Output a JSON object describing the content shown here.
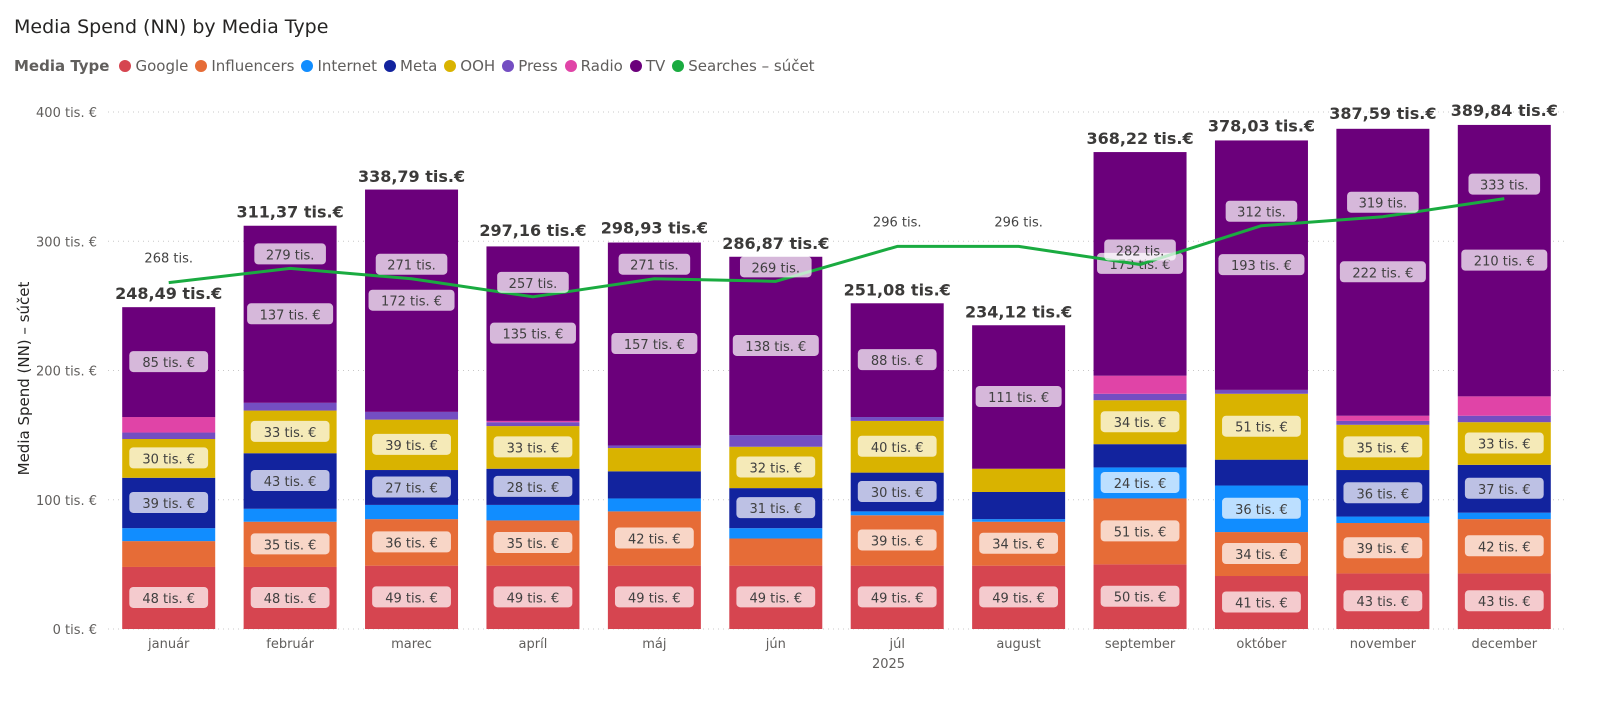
{
  "chart_data": {
    "type": "bar",
    "stacked": true,
    "title": "Media Spend (NN) by Media Type",
    "legend": {
      "title": "Media Type",
      "position": "top-left",
      "items": [
        {
          "name": "Google",
          "color": "#d64550"
        },
        {
          "name": "Influencers",
          "color": "#e66c37"
        },
        {
          "name": "Internet",
          "color": "#118dff"
        },
        {
          "name": "Meta",
          "color": "#12239e"
        },
        {
          "name": "OOH",
          "color": "#d9b300"
        },
        {
          "name": "Press",
          "color": "#744ec2"
        },
        {
          "name": "Radio",
          "color": "#e044a7"
        },
        {
          "name": "TV",
          "color": "#6b007b"
        },
        {
          "name": "Searches – súčet",
          "color": "#1aab40"
        }
      ]
    },
    "xlabel": "2025",
    "ylabel": "Media Spend (NN) – súčet",
    "ylim": [
      0,
      400
    ],
    "yticks": [
      {
        "value": 0,
        "label": "0 tis. €"
      },
      {
        "value": 100,
        "label": "100 tis. €"
      },
      {
        "value": 200,
        "label": "200 tis. €"
      },
      {
        "value": 300,
        "label": "300 tis. €"
      },
      {
        "value": 400,
        "label": "400 tis. €"
      }
    ],
    "grid": "horizontal dotted",
    "categories": [
      "január",
      "február",
      "marec",
      "apríl",
      "máj",
      "jún",
      "júl",
      "august",
      "september",
      "október",
      "november",
      "december"
    ],
    "series": [
      {
        "name": "Google",
        "color": "#d64550",
        "values": [
          48,
          48,
          49,
          49,
          49,
          49,
          49,
          49,
          50,
          41,
          43,
          43
        ],
        "labels": [
          "48 tis. €",
          "48 tis. €",
          "49 tis. €",
          "49 tis. €",
          "49 tis. €",
          "49 tis. €",
          "49 tis. €",
          "49 tis. €",
          "50 tis. €",
          "41 tis. €",
          "43 tis. €",
          "43 tis. €"
        ]
      },
      {
        "name": "Influencers",
        "color": "#e66c37",
        "values": [
          20,
          35,
          36,
          35,
          42,
          21,
          39,
          34,
          51,
          34,
          39,
          42
        ],
        "labels": [
          "",
          "35 tis. €",
          "36 tis. €",
          "35 tis. €",
          "42 tis. €",
          "",
          "39 tis. €",
          "34 tis. €",
          "51 tis. €",
          "34 tis. €",
          "39 tis. €",
          "42 tis. €"
        ]
      },
      {
        "name": "Internet",
        "color": "#118dff",
        "values": [
          10,
          10,
          11,
          12,
          10,
          8,
          3,
          2,
          24,
          36,
          5,
          5
        ],
        "labels": [
          "",
          "",
          "",
          "",
          "",
          "",
          "",
          "",
          "24 tis. €",
          "36 tis. €",
          "",
          ""
        ]
      },
      {
        "name": "Meta",
        "color": "#12239e",
        "values": [
          39,
          43,
          27,
          28,
          21,
          31,
          30,
          21,
          18,
          20,
          36,
          37
        ],
        "labels": [
          "39 tis. €",
          "43 tis. €",
          "27 tis. €",
          "28 tis. €",
          "",
          "31 tis. €",
          "30 tis. €",
          "",
          "",
          "",
          "36 tis. €",
          "37 tis. €"
        ]
      },
      {
        "name": "OOH",
        "color": "#d9b300",
        "values": [
          30,
          33,
          39,
          33,
          18,
          32,
          40,
          18,
          34,
          51,
          35,
          33
        ],
        "labels": [
          "30 tis. €",
          "33 tis. €",
          "39 tis. €",
          "33 tis. €",
          "",
          "32 tis. €",
          "40 tis. €",
          "",
          "34 tis. €",
          "51 tis. €",
          "35 tis. €",
          "33 tis. €"
        ]
      },
      {
        "name": "Press",
        "color": "#744ec2",
        "values": [
          5,
          6,
          6,
          3,
          2,
          9,
          3,
          0,
          5,
          3,
          3,
          5
        ],
        "labels": [
          "",
          "",
          "",
          "",
          "",
          "",
          "",
          "",
          "",
          "",
          "",
          ""
        ]
      },
      {
        "name": "Radio",
        "color": "#e044a7",
        "values": [
          12,
          0,
          0,
          1,
          0,
          0,
          0,
          0,
          14,
          0,
          4,
          15
        ],
        "labels": [
          "",
          "",
          "",
          "",
          "",
          "",
          "",
          "",
          "",
          "",
          "",
          ""
        ]
      },
      {
        "name": "TV",
        "color": "#6b007b",
        "values": [
          85,
          137,
          172,
          135,
          157,
          138,
          88,
          111,
          173,
          193,
          222,
          210
        ],
        "labels": [
          "85 tis. €",
          "137 tis. €",
          "172 tis. €",
          "135 tis. €",
          "157 tis. €",
          "138 tis. €",
          "88 tis. €",
          "111 tis. €",
          "173 tis. €",
          "193 tis. €",
          "222 tis. €",
          "210 tis. €"
        ]
      }
    ],
    "totals": [
      248.49,
      311.37,
      338.79,
      297.16,
      298.93,
      286.87,
      251.08,
      234.12,
      368.22,
      378.03,
      387.59,
      389.84
    ],
    "total_labels": [
      "248,49 tis.€",
      "311,37 tis.€",
      "338,79 tis.€",
      "297,16 tis.€",
      "298,93 tis.€",
      "286,87 tis.€",
      "251,08 tis.€",
      "234,12 tis.€",
      "368,22 tis.€",
      "378,03 tis.€",
      "387,59 tis.€",
      "389,84 tis.€"
    ],
    "line_series": {
      "name": "Searches – súčet",
      "color": "#1aab40",
      "values": [
        268,
        279,
        271,
        257,
        271,
        269,
        296,
        296,
        282,
        312,
        319,
        333
      ],
      "labels": [
        "268 tis.",
        "279 tis.",
        "271 tis.",
        "257 tis.",
        "271 tis.",
        "269 tis.",
        "296 tis.",
        "296 tis.",
        "282 tis.",
        "312 tis.",
        "319 tis.",
        "333 tis."
      ],
      "label_style": [
        "plain",
        "pill",
        "pill",
        "pill",
        "pill",
        "pill",
        "plain",
        "plain",
        "pill",
        "pill",
        "pill",
        "pill"
      ]
    }
  }
}
